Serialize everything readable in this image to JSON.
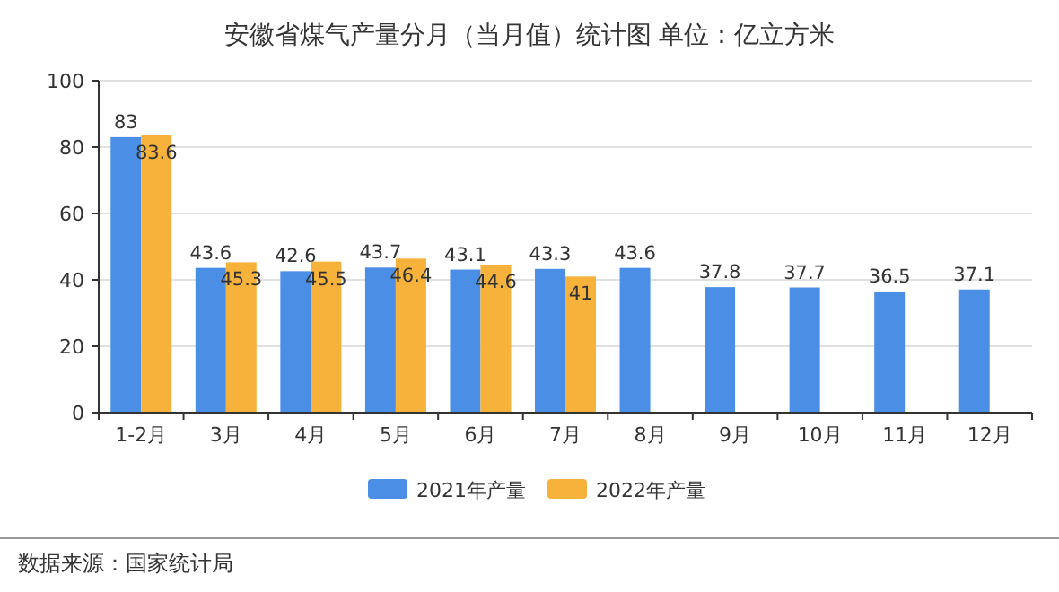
{
  "chart_data": {
    "type": "bar",
    "title": "安徽省煤气产量分月（当月值）统计图 单位：亿立方米",
    "categories": [
      "1-2月",
      "3月",
      "4月",
      "5月",
      "6月",
      "7月",
      "8月",
      "9月",
      "10月",
      "11月",
      "12月"
    ],
    "series": [
      {
        "name": "2021年产量",
        "color": "#4a8ee6",
        "values": [
          83,
          43.6,
          42.6,
          43.7,
          43.1,
          43.3,
          43.6,
          37.8,
          37.7,
          36.5,
          37.1
        ]
      },
      {
        "name": "2022年产量",
        "color": "#f7b23b",
        "values": [
          83.6,
          45.3,
          45.5,
          46.4,
          44.6,
          41,
          null,
          null,
          null,
          null,
          null
        ]
      }
    ],
    "ylim": [
      0,
      100
    ],
    "yticks": [
      0,
      20,
      40,
      60,
      80,
      100
    ],
    "grid": "y",
    "legend": "bottom",
    "data_labels": true,
    "annotations": [
      "数据来源：国家统计局"
    ]
  }
}
